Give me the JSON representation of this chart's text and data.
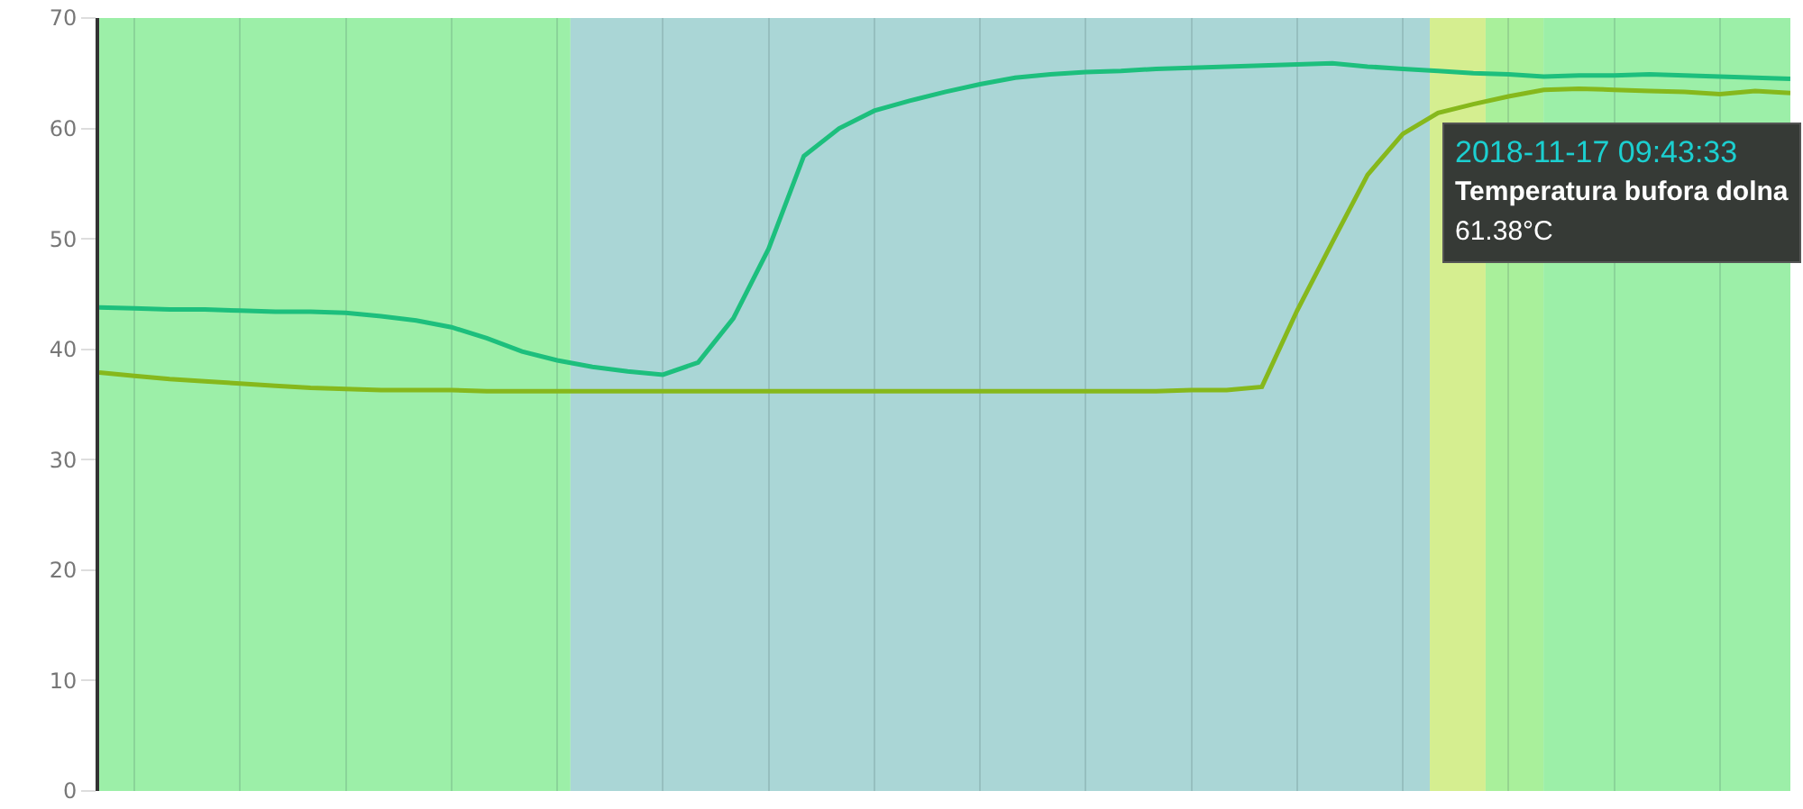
{
  "chart_data": {
    "type": "line",
    "categories": [
      null,
      null,
      null,
      null,
      null,
      null,
      null,
      null,
      null,
      null,
      null,
      null,
      null,
      null,
      null,
      null,
      null,
      null,
      null,
      null,
      null,
      null,
      null,
      null,
      null,
      null,
      null,
      null,
      null,
      null,
      null,
      null,
      null,
      null,
      null,
      null,
      null,
      null,
      null,
      null,
      null,
      null,
      null,
      null,
      null,
      null,
      null,
      null,
      null
    ],
    "series": [
      {
        "color": "#1dbf7d",
        "values": [
          43.8,
          43.7,
          43.6,
          43.6,
          43.5,
          43.4,
          43.4,
          43.3,
          43.0,
          42.6,
          42.0,
          41.0,
          39.8,
          39.0,
          38.4,
          38.0,
          37.7,
          38.8,
          42.8,
          49.1,
          57.5,
          60.0,
          61.6,
          62.5,
          63.3,
          64.0,
          64.6,
          64.9,
          65.1,
          65.2,
          65.4,
          65.5,
          65.6,
          65.7,
          65.8,
          65.9,
          65.6,
          65.4,
          65.2,
          65.0,
          64.9,
          64.7,
          64.8,
          64.8,
          64.9,
          64.8,
          64.7,
          64.6,
          64.5
        ]
      },
      {
        "color": "#86b81c",
        "values": [
          37.9,
          37.6,
          37.3,
          37.1,
          36.9,
          36.7,
          36.5,
          36.4,
          36.3,
          36.3,
          36.3,
          36.2,
          36.2,
          36.2,
          36.2,
          36.2,
          36.2,
          36.2,
          36.2,
          36.2,
          36.2,
          36.2,
          36.2,
          36.2,
          36.2,
          36.2,
          36.2,
          36.2,
          36.2,
          36.2,
          36.2,
          36.3,
          36.3,
          36.6,
          43.5,
          49.7,
          55.8,
          59.5,
          61.4,
          62.2,
          62.9,
          63.5,
          63.6,
          63.5,
          63.4,
          63.3,
          63.1,
          63.4,
          63.2
        ]
      }
    ],
    "ylim": [
      0,
      70
    ],
    "yticks": [
      0,
      10,
      20,
      30,
      40,
      50,
      60,
      70
    ],
    "grid": "x",
    "tick_labels": "y",
    "annotations": [
      "2018-11-17 09:43:33",
      "Temperatura bufora dolna",
      "61.38°C"
    ]
  }
}
